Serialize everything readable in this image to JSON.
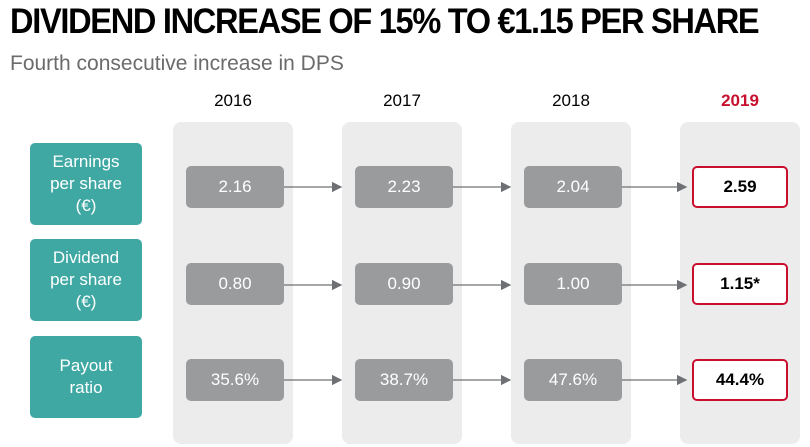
{
  "header": {
    "title": "DIVIDEND INCREASE OF 15% TO €1.15 PER SHARE",
    "subtitle": "Fourth consecutive increase in DPS"
  },
  "years": [
    "2016",
    "2017",
    "2018",
    "2019"
  ],
  "highlight_year": "2019",
  "rows": [
    {
      "label": "Earnings\nper share\n(€)",
      "values": [
        "2.16",
        "2.23",
        "2.04",
        "2.59"
      ]
    },
    {
      "label": "Dividend\nper share\n(€)",
      "values": [
        "0.80",
        "0.90",
        "1.00",
        "1.15*"
      ]
    },
    {
      "label": "Payout\nratio",
      "values": [
        "35.6%",
        "38.7%",
        "47.6%",
        "44.4%"
      ]
    }
  ],
  "colors": {
    "accent": "#c8102e",
    "teal": "#3fa8a3",
    "value_box": "#9a9b9d",
    "column_bg": "#ececec"
  }
}
